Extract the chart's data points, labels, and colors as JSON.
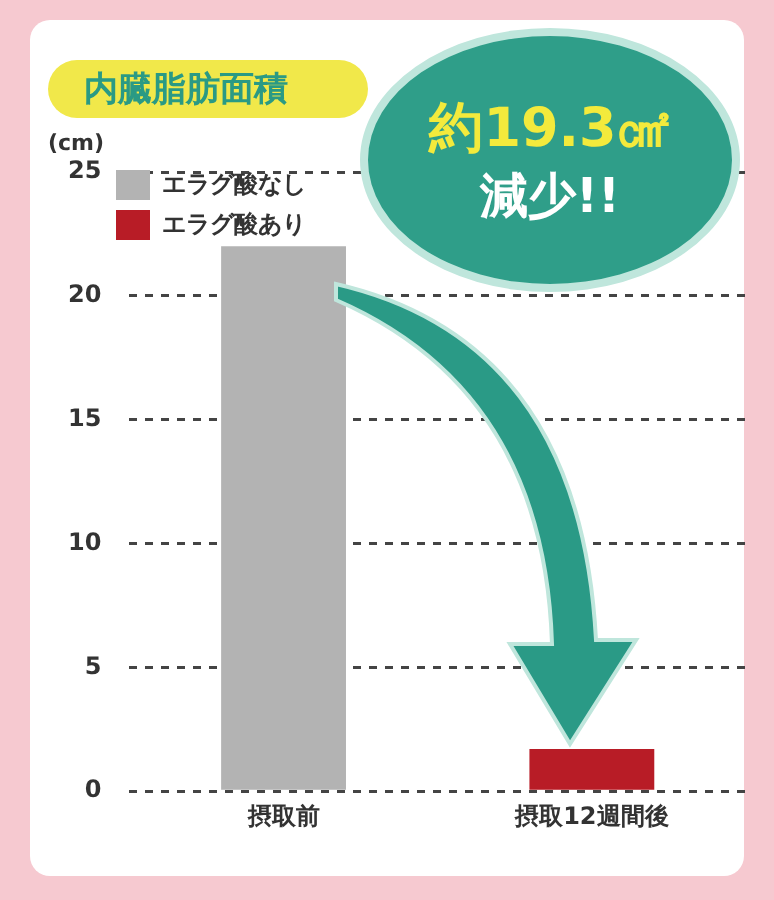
{
  "chart_data": {
    "type": "bar",
    "title": "内臓脂肪面積",
    "ylabel": "(cm)",
    "categories": [
      "摂取前",
      "摂取12週間後"
    ],
    "series": [
      {
        "name": "エラグ酸なし",
        "color": "#b3b3b3",
        "values": [
          22.0,
          null
        ]
      },
      {
        "name": "エラグ酸あり",
        "color": "#b81c26",
        "values": [
          null,
          1.7
        ]
      }
    ],
    "ylim": [
      0,
      25
    ],
    "yticks": [
      0,
      5,
      10,
      15,
      20,
      25
    ],
    "grid": "y",
    "legend": "top left",
    "annotations": [
      "約19.3㎠",
      "減少!!"
    ]
  }
}
